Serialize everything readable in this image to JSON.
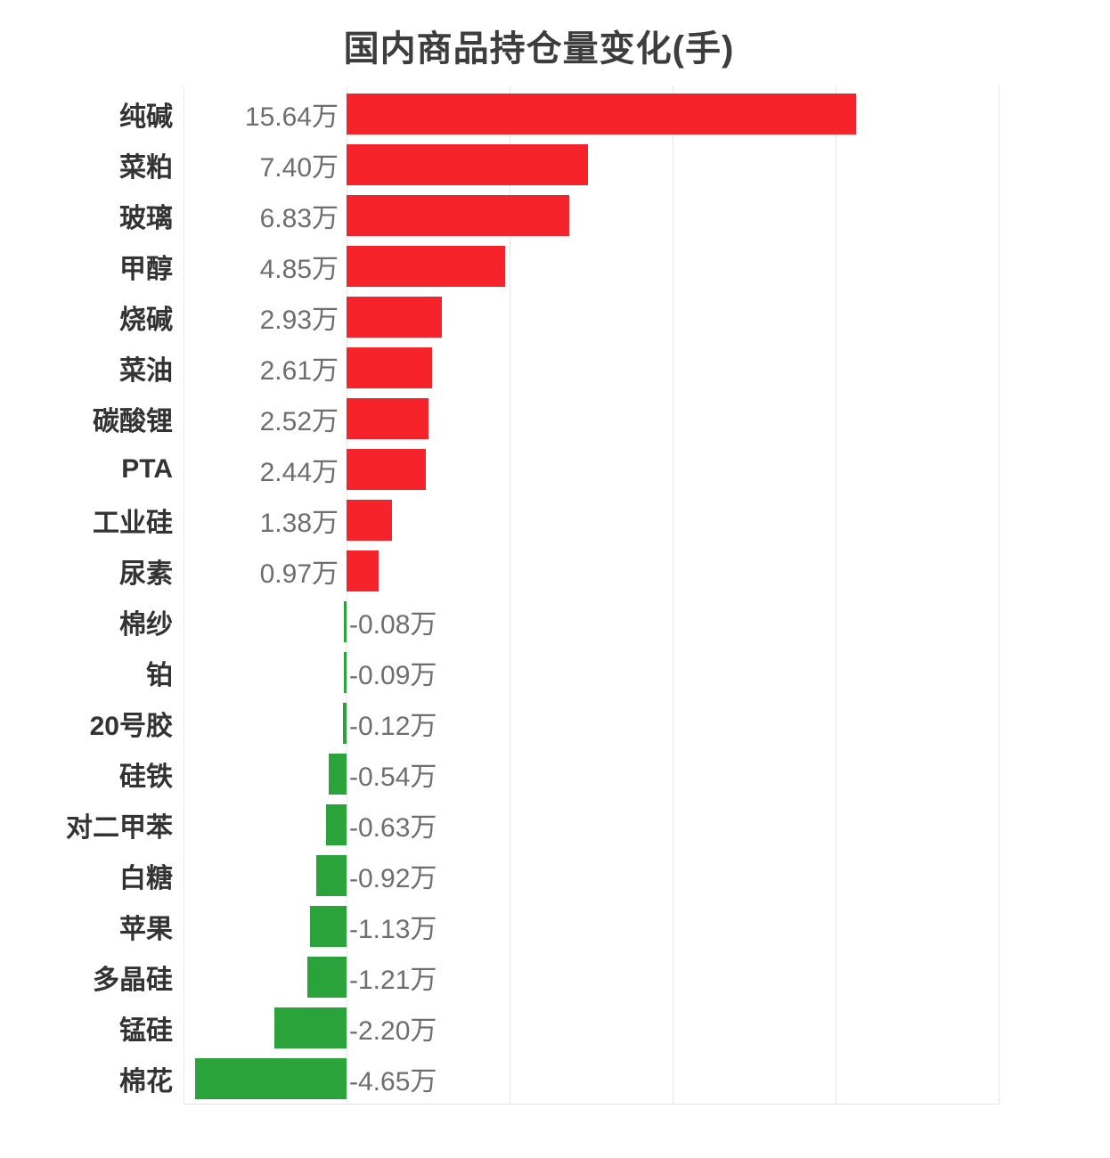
{
  "title": "国内商品持仓量变化(手)",
  "chart_data": {
    "type": "bar",
    "orientation": "horizontal",
    "title": "国内商品持仓量变化(手)",
    "value_unit": "万",
    "xlabel": "",
    "ylabel": "",
    "xlim": [
      -5,
      20
    ],
    "grid_step": 5,
    "grid": true,
    "legend": false,
    "positive_color": "#f6232b",
    "negative_color": "#2aa43a",
    "items": [
      {
        "name": "纯碱",
        "value": 15.64,
        "label": "15.64万"
      },
      {
        "name": "菜粕",
        "value": 7.4,
        "label": "7.40万"
      },
      {
        "name": "玻璃",
        "value": 6.83,
        "label": "6.83万"
      },
      {
        "name": "甲醇",
        "value": 4.85,
        "label": "4.85万"
      },
      {
        "name": "烧碱",
        "value": 2.93,
        "label": "2.93万"
      },
      {
        "name": "菜油",
        "value": 2.61,
        "label": "2.61万"
      },
      {
        "name": "碳酸锂",
        "value": 2.52,
        "label": "2.52万"
      },
      {
        "name": "PTA",
        "value": 2.44,
        "label": "2.44万"
      },
      {
        "name": "工业硅",
        "value": 1.38,
        "label": "1.38万"
      },
      {
        "name": "尿素",
        "value": 0.97,
        "label": "0.97万"
      },
      {
        "name": "棉纱",
        "value": -0.08,
        "label": "-0.08万"
      },
      {
        "name": "铂",
        "value": -0.09,
        "label": "-0.09万"
      },
      {
        "name": "20号胶",
        "value": -0.12,
        "label": "-0.12万"
      },
      {
        "name": "硅铁",
        "value": -0.54,
        "label": "-0.54万"
      },
      {
        "name": "对二甲苯",
        "value": -0.63,
        "label": "-0.63万"
      },
      {
        "name": "白糖",
        "value": -0.92,
        "label": "-0.92万"
      },
      {
        "name": "苹果",
        "value": -1.13,
        "label": "-1.13万"
      },
      {
        "name": "多晶硅",
        "value": -1.21,
        "label": "-1.21万"
      },
      {
        "name": "锰硅",
        "value": -2.2,
        "label": "-2.20万"
      },
      {
        "name": "棉花",
        "value": -4.65,
        "label": "-4.65万"
      }
    ]
  }
}
